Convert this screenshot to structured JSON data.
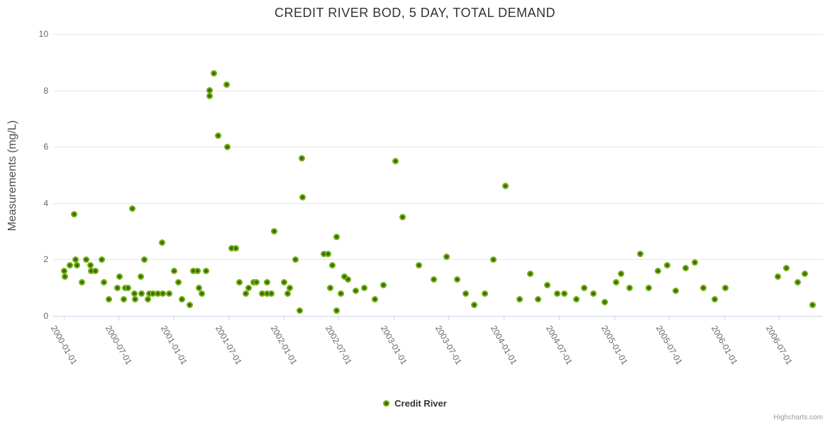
{
  "title": "CREDIT RIVER BOD, 5 DAY, TOTAL DEMAND",
  "credits": "Highcharts.com",
  "colors": {
    "point_fill": "#6eb110",
    "point_core": "#3c640a",
    "grid": "#e6e6e6",
    "axis_line": "#ccd6eb",
    "title_text": "#333333",
    "label_text": "#666666",
    "credits_text": "#999999"
  },
  "chart_data": {
    "type": "scatter",
    "title": "CREDIT RIVER BOD, 5 DAY, TOTAL DEMAND",
    "xlabel": "",
    "ylabel": "Measurements (mg/L)",
    "ylim": [
      0,
      10
    ],
    "yticks": [
      0,
      2,
      4,
      6,
      8,
      10
    ],
    "xticks": [
      "2000-01-01",
      "2000-07-01",
      "2001-01-01",
      "2001-07-01",
      "2002-01-01",
      "2002-07-01",
      "2003-01-01",
      "2003-07-01",
      "2004-01-01",
      "2004-07-01",
      "2005-01-01",
      "2005-07-01",
      "2006-01-01",
      "2006-07-01"
    ],
    "grid": "horizontal",
    "legend_position": "bottom-center",
    "series": [
      {
        "name": "Credit River",
        "points": [
          [
            "2000-01-01",
            1.6
          ],
          [
            "2000-01-05",
            1.4
          ],
          [
            "2000-01-20",
            1.8
          ],
          [
            "2000-02-04",
            3.6
          ],
          [
            "2000-02-08",
            2.0
          ],
          [
            "2000-02-14",
            1.8
          ],
          [
            "2000-02-29",
            1.2
          ],
          [
            "2000-03-15",
            2.0
          ],
          [
            "2000-03-29",
            1.8
          ],
          [
            "2000-03-31",
            1.6
          ],
          [
            "2000-04-14",
            1.6
          ],
          [
            "2000-05-06",
            2.0
          ],
          [
            "2000-05-12",
            1.2
          ],
          [
            "2000-05-30",
            0.6
          ],
          [
            "2000-06-27",
            1.0
          ],
          [
            "2000-07-05",
            1.4
          ],
          [
            "2000-07-19",
            0.6
          ],
          [
            "2000-07-23",
            1.0
          ],
          [
            "2000-08-02",
            1.0
          ],
          [
            "2000-08-15",
            3.8
          ],
          [
            "2000-08-23",
            0.8
          ],
          [
            "2000-08-25",
            0.6
          ],
          [
            "2000-09-12",
            1.4
          ],
          [
            "2000-09-15",
            0.8
          ],
          [
            "2000-09-25",
            2.0
          ],
          [
            "2000-10-07",
            0.6
          ],
          [
            "2000-10-10",
            0.8
          ],
          [
            "2000-10-22",
            0.8
          ],
          [
            "2000-11-08",
            0.8
          ],
          [
            "2000-11-22",
            2.6
          ],
          [
            "2000-11-25",
            0.8
          ],
          [
            "2000-12-16",
            0.8
          ],
          [
            "2001-01-02",
            1.6
          ],
          [
            "2001-01-16",
            1.2
          ],
          [
            "2001-01-28",
            0.6
          ],
          [
            "2001-02-22",
            0.4
          ],
          [
            "2001-03-06",
            1.6
          ],
          [
            "2001-03-20",
            1.6
          ],
          [
            "2001-03-25",
            1.0
          ],
          [
            "2001-04-04",
            0.8
          ],
          [
            "2001-04-17",
            1.6
          ],
          [
            "2001-04-28",
            8.0
          ],
          [
            "2001-04-30",
            7.8
          ],
          [
            "2001-05-14",
            8.6
          ],
          [
            "2001-05-28",
            6.4
          ],
          [
            "2001-06-24",
            8.2
          ],
          [
            "2001-06-26",
            6.0
          ],
          [
            "2001-07-11",
            2.4
          ],
          [
            "2001-07-24",
            2.4
          ],
          [
            "2001-08-05",
            1.2
          ],
          [
            "2001-08-27",
            0.8
          ],
          [
            "2001-09-05",
            1.0
          ],
          [
            "2001-09-23",
            1.2
          ],
          [
            "2001-10-02",
            1.2
          ],
          [
            "2001-10-20",
            0.8
          ],
          [
            "2001-11-05",
            0.8
          ],
          [
            "2001-11-06",
            1.2
          ],
          [
            "2001-11-20",
            0.8
          ],
          [
            "2001-11-29",
            3.0
          ],
          [
            "2001-12-31",
            1.2
          ],
          [
            "2002-01-14",
            0.8
          ],
          [
            "2002-01-21",
            1.0
          ],
          [
            "2002-02-07",
            2.0
          ],
          [
            "2002-02-21",
            0.2
          ],
          [
            "2002-02-28",
            5.6
          ],
          [
            "2002-03-04",
            4.2
          ],
          [
            "2002-05-12",
            2.2
          ],
          [
            "2002-05-27",
            2.2
          ],
          [
            "2002-06-04",
            1.0
          ],
          [
            "2002-06-10",
            1.8
          ],
          [
            "2002-06-24",
            2.8
          ],
          [
            "2002-06-25",
            0.2
          ],
          [
            "2002-07-09",
            0.8
          ],
          [
            "2002-07-20",
            1.4
          ],
          [
            "2002-08-01",
            1.3
          ],
          [
            "2002-08-28",
            0.9
          ],
          [
            "2002-09-25",
            1.0
          ],
          [
            "2002-10-29",
            0.6
          ],
          [
            "2002-11-27",
            1.1
          ],
          [
            "2003-01-06",
            5.5
          ],
          [
            "2003-01-30",
            3.5
          ],
          [
            "2003-03-24",
            1.8
          ],
          [
            "2003-05-14",
            1.3
          ],
          [
            "2003-06-24",
            2.1
          ],
          [
            "2003-07-29",
            1.3
          ],
          [
            "2003-08-27",
            0.8
          ],
          [
            "2003-09-25",
            0.4
          ],
          [
            "2003-10-30",
            0.8
          ],
          [
            "2003-11-26",
            2.0
          ],
          [
            "2004-01-05",
            4.6
          ],
          [
            "2004-02-23",
            0.6
          ],
          [
            "2004-03-29",
            1.5
          ],
          [
            "2004-04-24",
            0.6
          ],
          [
            "2004-05-23",
            1.1
          ],
          [
            "2004-06-25",
            0.8
          ],
          [
            "2004-07-20",
            0.8
          ],
          [
            "2004-08-29",
            0.6
          ],
          [
            "2004-09-23",
            1.0
          ],
          [
            "2004-10-24",
            0.8
          ],
          [
            "2004-11-30",
            0.5
          ],
          [
            "2005-01-07",
            1.2
          ],
          [
            "2005-01-23",
            1.5
          ],
          [
            "2005-02-21",
            1.0
          ],
          [
            "2005-03-29",
            2.2
          ],
          [
            "2005-04-25",
            1.0
          ],
          [
            "2005-05-25",
            1.6
          ],
          [
            "2005-06-25",
            1.8
          ],
          [
            "2005-07-24",
            0.9
          ],
          [
            "2005-08-26",
            1.7
          ],
          [
            "2005-09-25",
            1.9
          ],
          [
            "2005-10-25",
            1.0
          ],
          [
            "2005-11-30",
            0.6
          ],
          [
            "2006-01-06",
            1.0
          ],
          [
            "2006-06-27",
            1.4
          ],
          [
            "2006-07-26",
            1.7
          ],
          [
            "2006-09-01",
            1.2
          ],
          [
            "2006-09-25",
            1.5
          ],
          [
            "2006-10-22",
            0.4
          ]
        ]
      }
    ]
  }
}
